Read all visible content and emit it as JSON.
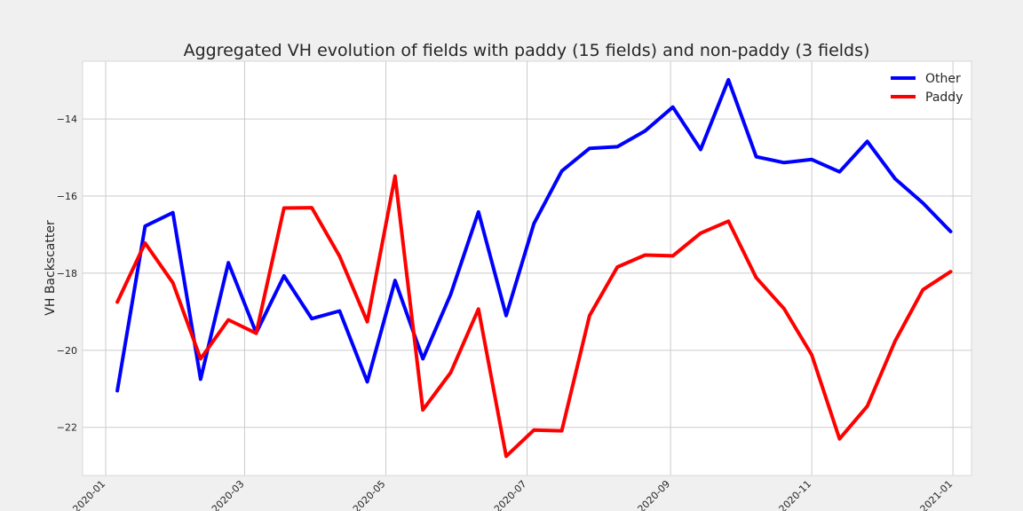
{
  "chart_data": {
    "type": "line",
    "title": "Aggregated VH evolution of fields with paddy (15 fields) and non-paddy (3 fields)",
    "xlabel": "",
    "ylabel": "VH Backscatter",
    "x_ticks": [
      "2020-01",
      "2020-03",
      "2020-05",
      "2020-07",
      "2020-09",
      "2020-11",
      "2021-01"
    ],
    "y_ticks": [
      -22,
      -20,
      -18,
      -16,
      -14
    ],
    "y_tick_labels": [
      "−22",
      "−20",
      "−18",
      "−16",
      "−14"
    ],
    "xlim": [
      "2019-12-22",
      "2021-01-09"
    ],
    "ylim": [
      -23.25,
      -12.5
    ],
    "grid": true,
    "legend_position": "top-right",
    "x": [
      "2020-01-06",
      "2020-01-18",
      "2020-01-30",
      "2020-02-11",
      "2020-02-23",
      "2020-03-06",
      "2020-03-18",
      "2020-03-30",
      "2020-04-11",
      "2020-04-23",
      "2020-05-05",
      "2020-05-17",
      "2020-05-29",
      "2020-06-10",
      "2020-06-22",
      "2020-07-04",
      "2020-07-16",
      "2020-07-28",
      "2020-08-09",
      "2020-08-21",
      "2020-09-02",
      "2020-09-14",
      "2020-09-26",
      "2020-10-08",
      "2020-10-20",
      "2020-11-01",
      "2020-11-13",
      "2020-11-25",
      "2020-12-07",
      "2020-12-19",
      "2020-12-31"
    ],
    "series": [
      {
        "name": "Other",
        "color": "#0000ff",
        "values": [
          -21.05,
          -16.78,
          -16.43,
          -20.75,
          -17.73,
          -19.55,
          -18.07,
          -19.18,
          -18.98,
          -20.82,
          -18.19,
          -20.22,
          -18.55,
          -16.41,
          -19.1,
          -16.71,
          -15.35,
          -14.76,
          -14.72,
          -14.31,
          -13.69,
          -14.79,
          -12.98,
          -14.98,
          -15.13,
          -15.05,
          -15.37,
          -14.58,
          -15.55,
          -16.18,
          -16.92
        ]
      },
      {
        "name": "Paddy",
        "color": "#ff0000",
        "values": [
          -18.75,
          -17.22,
          -18.25,
          -20.22,
          -19.21,
          -19.56,
          -16.31,
          -16.3,
          -17.56,
          -19.26,
          -15.48,
          -21.55,
          -20.58,
          -18.93,
          -22.75,
          -22.07,
          -22.09,
          -19.1,
          -17.84,
          -17.53,
          -17.55,
          -16.96,
          -16.65,
          -18.12,
          -18.92,
          -20.12,
          -22.3,
          -21.45,
          -19.76,
          -18.43,
          -17.96
        ]
      }
    ]
  }
}
